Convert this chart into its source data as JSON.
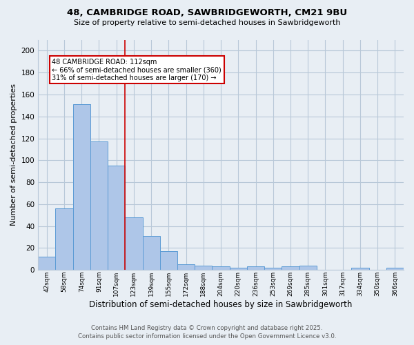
{
  "title": "48, CAMBRIDGE ROAD, SAWBRIDGEWORTH, CM21 9BU",
  "subtitle": "Size of property relative to semi-detached houses in Sawbridgeworth",
  "xlabel": "Distribution of semi-detached houses by size in Sawbridgeworth",
  "ylabel": "Number of semi-detached properties",
  "bin_labels": [
    "42sqm",
    "58sqm",
    "74sqm",
    "91sqm",
    "107sqm",
    "123sqm",
    "139sqm",
    "155sqm",
    "172sqm",
    "188sqm",
    "204sqm",
    "220sqm",
    "236sqm",
    "253sqm",
    "269sqm",
    "285sqm",
    "301sqm",
    "317sqm",
    "334sqm",
    "350sqm",
    "366sqm"
  ],
  "bin_values": [
    12,
    56,
    151,
    117,
    95,
    48,
    31,
    17,
    5,
    4,
    3,
    2,
    3,
    2,
    3,
    4,
    0,
    0,
    2,
    0,
    2
  ],
  "bar_color": "#aec6e8",
  "bar_edge_color": "#5b9bd5",
  "vline_x_index": 4.5,
  "vline_color": "#cc0000",
  "annotation_title": "48 CAMBRIDGE ROAD: 112sqm",
  "annotation_line2": "← 66% of semi-detached houses are smaller (360)",
  "annotation_line3": "31% of semi-detached houses are larger (170) →",
  "annotation_box_color": "#cc0000",
  "annotation_bg": "#ffffff",
  "ylim": [
    0,
    210
  ],
  "yticks": [
    0,
    20,
    40,
    60,
    80,
    100,
    120,
    140,
    160,
    180,
    200
  ],
  "footer_line1": "Contains HM Land Registry data © Crown copyright and database right 2025.",
  "footer_line2": "Contains public sector information licensed under the Open Government Licence v3.0.",
  "bg_color": "#e8eef4",
  "grid_color": "#b8c8d8"
}
